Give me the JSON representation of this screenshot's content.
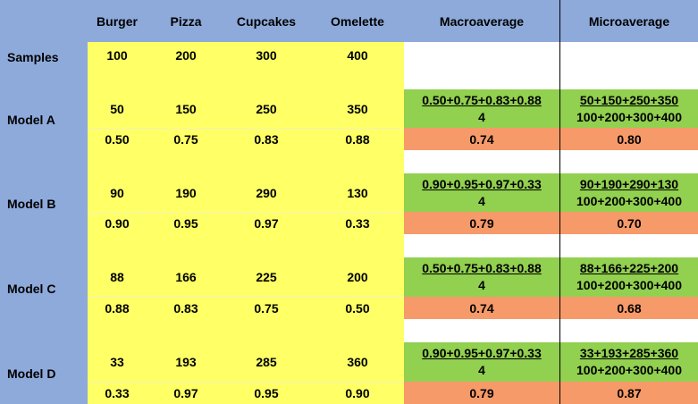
{
  "header": {
    "columns": [
      "Burger",
      "Pizza",
      "Cupcakes",
      "Omelette",
      "Macroaverage",
      "Microaverage"
    ]
  },
  "samples": {
    "label": "Samples",
    "values": [
      "100",
      "200",
      "300",
      "400"
    ]
  },
  "models": [
    {
      "label": "Model A",
      "counts": [
        "50",
        "150",
        "250",
        "350"
      ],
      "ratios": [
        "0.50",
        "0.75",
        "0.83",
        "0.88"
      ],
      "macro_numerator": "0.50+0.75+0.83+0.88",
      "macro_denominator": "4",
      "macro_result": "0.74",
      "micro_numerator": "50+150+250+350",
      "micro_denominator": "100+200+300+400",
      "micro_result": "0.80"
    },
    {
      "label": "Model B",
      "counts": [
        "90",
        "190",
        "290",
        "130"
      ],
      "ratios": [
        "0.90",
        "0.95",
        "0.97",
        "0.33"
      ],
      "macro_numerator": "0.90+0.95+0.97+0.33",
      "macro_denominator": "4",
      "macro_result": "0.79",
      "micro_numerator": "90+190+290+130",
      "micro_denominator": "100+200+300+400",
      "micro_result": "0.70"
    },
    {
      "label": "Model C",
      "counts": [
        "88",
        "166",
        "225",
        "200"
      ],
      "ratios": [
        "0.88",
        "0.83",
        "0.75",
        "0.50"
      ],
      "macro_numerator": "0.50+0.75+0.83+0.88",
      "macro_denominator": "4",
      "macro_result": "0.74",
      "micro_numerator": "88+166+225+200",
      "micro_denominator": "100+200+300+400",
      "micro_result": "0.68"
    },
    {
      "label": "Model D",
      "counts": [
        "33",
        "193",
        "285",
        "360"
      ],
      "ratios": [
        "0.33",
        "0.97",
        "0.95",
        "0.90"
      ],
      "macro_numerator": "0.90+0.95+0.97+0.33",
      "macro_denominator": "4",
      "macro_result": "0.79",
      "micro_numerator": "33+193+285+360",
      "micro_denominator": "100+200+300+400",
      "micro_result": "0.87"
    }
  ],
  "colors": {
    "header": "#8eaadb",
    "data": "#ffff66",
    "formula": "#92d050",
    "result": "#f79a69"
  }
}
